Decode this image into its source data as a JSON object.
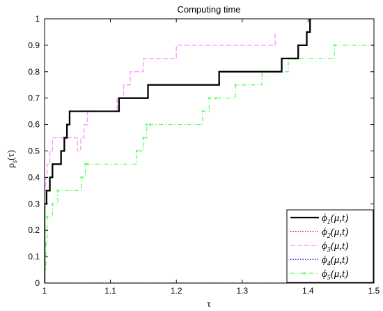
{
  "chart_data": {
    "type": "line",
    "title": "Computing time",
    "xlabel": "τ",
    "ylabel": "ρ",
    "ylabel_sub": "s",
    "ylabel_suffix": "(τ)",
    "xlim": [
      1,
      1.5
    ],
    "ylim": [
      0,
      1
    ],
    "xticks": [
      "1",
      "1.1",
      "1.2",
      "1.3",
      "1.4",
      "1.5"
    ],
    "yticks": [
      "0",
      "0.1",
      "0.2",
      "0.3",
      "0.4",
      "0.5",
      "0.6",
      "0.7",
      "0.8",
      "0.9",
      "1"
    ],
    "grid": false,
    "legend_position": "bottom-right",
    "series": [
      {
        "name": "ϕ1(μ,t)",
        "label_main": "ϕ",
        "label_sub": "1",
        "label_args": "(μ,t)",
        "color": "#000000",
        "style": "solid",
        "marker": "none",
        "x": [
          1,
          1.003,
          1.008,
          1.012,
          1.025,
          1.03,
          1.034,
          1.038,
          1.042,
          1.113,
          1.157,
          1.265,
          1.36,
          1.385,
          1.398,
          1.403,
          1.405
        ],
        "y": [
          0.3,
          0.35,
          0.4,
          0.45,
          0.5,
          0.55,
          0.6,
          0.65,
          0.65,
          0.7,
          0.75,
          0.8,
          0.85,
          0.9,
          0.95,
          1.0,
          1.0
        ]
      },
      {
        "name": "ϕ2(μ,t)",
        "label_main": "ϕ",
        "label_sub": "2",
        "label_args": "(μ,t)",
        "color": "#ff0000",
        "style": "dotted",
        "marker": "none",
        "x": [
          1,
          1.5
        ],
        "y": [
          0,
          0
        ]
      },
      {
        "name": "ϕ3(μ,t)",
        "label_main": "ϕ",
        "label_sub": "3",
        "label_args": "(μ,t)",
        "color": "#ff99ff",
        "style": "dashed",
        "marker": "none",
        "x": [
          1,
          1.002,
          1.004,
          1.008,
          1.012,
          1.03,
          1.05,
          1.055,
          1.06,
          1.065,
          1.075,
          1.11,
          1.12,
          1.125,
          1.13,
          1.14,
          1.15,
          1.16,
          1.2,
          1.21,
          1.35
        ],
        "y": [
          0.35,
          0.4,
          0.45,
          0.5,
          0.55,
          0.55,
          0.5,
          0.55,
          0.6,
          0.65,
          0.65,
          0.7,
          0.75,
          0.75,
          0.8,
          0.8,
          0.85,
          0.85,
          0.9,
          0.9,
          0.95
        ]
      },
      {
        "name": "ϕ4(μ,t)",
        "label_main": "ϕ",
        "label_sub": "4",
        "label_args": "(μ,t)",
        "color": "#0000ff",
        "style": "dotted",
        "marker": "none",
        "x": [
          1,
          1.5
        ],
        "y": [
          0,
          0
        ]
      },
      {
        "name": "ϕ5(μ,t)",
        "label_main": "ϕ",
        "label_sub": "5",
        "label_args": "(μ,t)",
        "color": "#66ff66",
        "style": "dash-dot",
        "marker": "point",
        "x": [
          1,
          1.002,
          1.004,
          1.012,
          1.02,
          1.056,
          1.062,
          1.065,
          1.14,
          1.15,
          1.155,
          1.16,
          1.24,
          1.25,
          1.26,
          1.29,
          1.33,
          1.35,
          1.37,
          1.38,
          1.44,
          1.5
        ],
        "y": [
          0.05,
          0.15,
          0.25,
          0.3,
          0.35,
          0.4,
          0.45,
          0.45,
          0.5,
          0.55,
          0.6,
          0.6,
          0.65,
          0.7,
          0.7,
          0.75,
          0.8,
          0.8,
          0.85,
          0.85,
          0.9,
          0.9
        ]
      }
    ]
  }
}
